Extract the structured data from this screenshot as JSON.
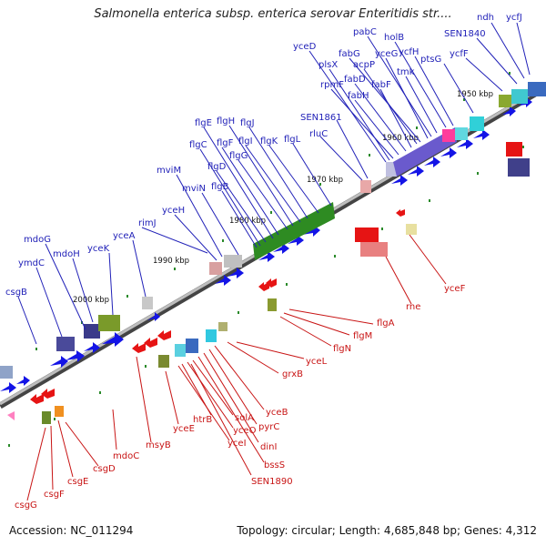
{
  "title": "Salmonella enterica subsp. enterica serovar Enteritidis str....",
  "footer": {
    "accession": "Accession: NC_011294",
    "topology": "Topology: circular; Length: 4,685,848 bp; Genes: 4,312"
  },
  "scale_labels": [
    "1950 kbp",
    "1960 kbp",
    "1970 kbp",
    "1980 kbp",
    "1990 kbp",
    "2000 kbp"
  ],
  "genes_top": [
    "ycfJ",
    "ndh",
    "SEN1840",
    "ycfF",
    "ptsG",
    "ycfH",
    "holB",
    "tmk",
    "pabC",
    "yceG",
    "fabG",
    "acpP",
    "fabF",
    "fabD",
    "fabH",
    "rpmF",
    "plsX",
    "yceD",
    "SEN1861",
    "rluC",
    "flgL",
    "flgK",
    "flgJ",
    "flgI",
    "flgH",
    "flgG",
    "flgF",
    "flgE",
    "flgD",
    "flgC",
    "flgB",
    "mviN",
    "mviM",
    "yceH",
    "rimJ",
    "yceA",
    "yceK",
    "mdoH",
    "mdoG",
    "ymdC",
    "csgB"
  ],
  "genes_bottom": [
    "yceF",
    "rne",
    "flgA",
    "flgM",
    "flgN",
    "yceL",
    "grxB",
    "yceB",
    "pyrC",
    "dinI",
    "bssS",
    "solA",
    "yceO",
    "htrB",
    "yceI",
    "SEN1890",
    "yceE",
    "msyB",
    "mdoC",
    "csgD",
    "csgE",
    "csgF",
    "csgG"
  ],
  "colors": {
    "top_strand_arrow": "#1414e6",
    "bottom_strand_arrow": "#e61414",
    "top_label": "#2121b8",
    "bottom_label": "#c81414",
    "backbone": "#777777",
    "flagellar_block": "#2e8b22"
  }
}
